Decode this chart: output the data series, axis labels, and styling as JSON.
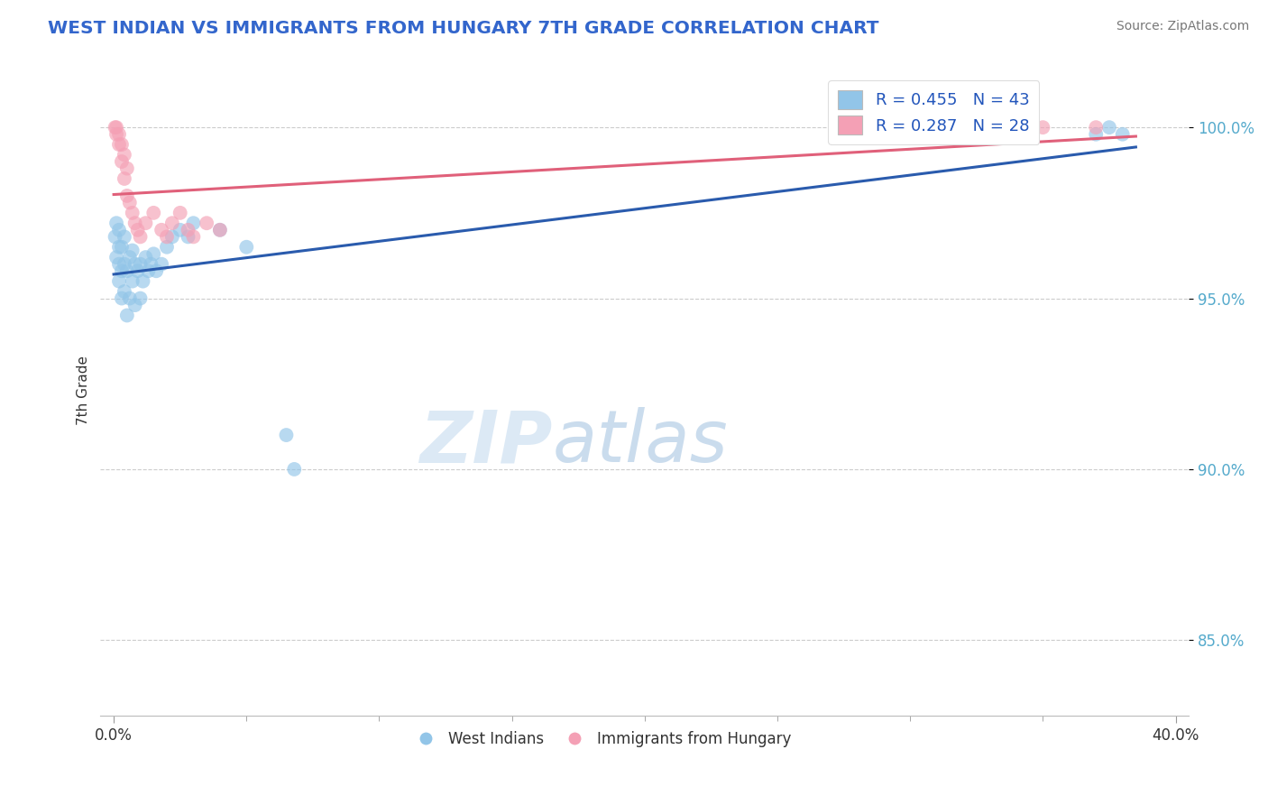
{
  "title": "WEST INDIAN VS IMMIGRANTS FROM HUNGARY 7TH GRADE CORRELATION CHART",
  "source": "Source: ZipAtlas.com",
  "ylabel": "7th Grade",
  "ytick_labels": [
    "85.0%",
    "90.0%",
    "95.0%",
    "100.0%"
  ],
  "ytick_values": [
    0.85,
    0.9,
    0.95,
    1.0
  ],
  "xlim": [
    -0.005,
    0.405
  ],
  "ylim": [
    0.828,
    1.018
  ],
  "legend_r1": "R = 0.455   N = 43",
  "legend_r2": "R = 0.287   N = 28",
  "blue_color": "#92C5E8",
  "pink_color": "#F4A0B5",
  "blue_line_color": "#2A5BAD",
  "pink_line_color": "#E0607A",
  "title_color": "#3366CC",
  "source_color": "#777777",
  "blue_scatter_x": [
    0.0005,
    0.001,
    0.001,
    0.002,
    0.002,
    0.002,
    0.002,
    0.003,
    0.003,
    0.003,
    0.004,
    0.004,
    0.004,
    0.005,
    0.005,
    0.006,
    0.006,
    0.007,
    0.007,
    0.008,
    0.008,
    0.009,
    0.01,
    0.01,
    0.011,
    0.012,
    0.013,
    0.014,
    0.015,
    0.016,
    0.018,
    0.02,
    0.022,
    0.025,
    0.028,
    0.03,
    0.04,
    0.05,
    0.065,
    0.068,
    0.37,
    0.375,
    0.38
  ],
  "blue_scatter_y": [
    0.968,
    0.962,
    0.972,
    0.955,
    0.96,
    0.965,
    0.97,
    0.95,
    0.958,
    0.965,
    0.952,
    0.96,
    0.968,
    0.945,
    0.958,
    0.95,
    0.962,
    0.955,
    0.964,
    0.948,
    0.96,
    0.958,
    0.95,
    0.96,
    0.955,
    0.962,
    0.958,
    0.96,
    0.963,
    0.958,
    0.96,
    0.965,
    0.968,
    0.97,
    0.968,
    0.972,
    0.97,
    0.965,
    0.91,
    0.9,
    0.998,
    1.0,
    0.998
  ],
  "pink_scatter_x": [
    0.0005,
    0.001,
    0.001,
    0.002,
    0.002,
    0.003,
    0.003,
    0.004,
    0.004,
    0.005,
    0.005,
    0.006,
    0.007,
    0.008,
    0.009,
    0.01,
    0.012,
    0.015,
    0.018,
    0.02,
    0.022,
    0.025,
    0.028,
    0.03,
    0.035,
    0.04,
    0.35,
    0.37
  ],
  "pink_scatter_y": [
    1.0,
    0.998,
    1.0,
    0.995,
    0.998,
    0.99,
    0.995,
    0.985,
    0.992,
    0.98,
    0.988,
    0.978,
    0.975,
    0.972,
    0.97,
    0.968,
    0.972,
    0.975,
    0.97,
    0.968,
    0.972,
    0.975,
    0.97,
    0.968,
    0.972,
    0.97,
    1.0,
    1.0
  ],
  "watermark_zip": "ZIP",
  "watermark_atlas": "atlas",
  "watermark_color_zip": "#C8DDEF",
  "watermark_color_atlas": "#A8C8E8"
}
